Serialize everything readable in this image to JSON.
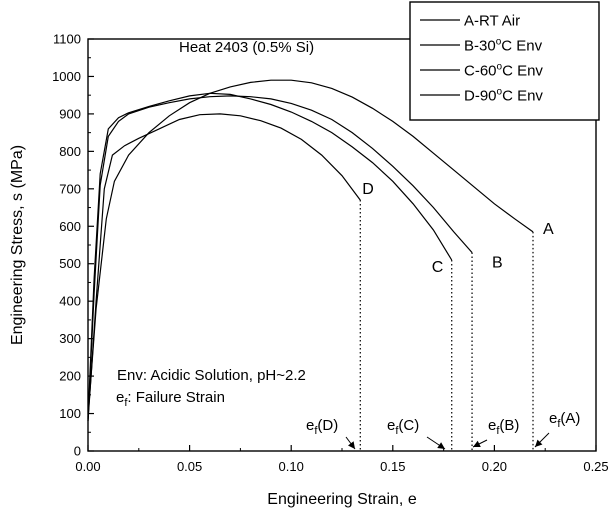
{
  "chart_data": {
    "type": "line",
    "xlabel": "Engineering Strain, e",
    "ylabel": "Engineering Stress, s (MPa)",
    "xlim": [
      0,
      0.25
    ],
    "ylim": [
      0,
      1100
    ],
    "x_ticks": [
      "0.00",
      "0.05",
      "0.10",
      "0.15",
      "0.20",
      "0.25"
    ],
    "y_ticks": [
      "0",
      "100",
      "200",
      "300",
      "400",
      "500",
      "600",
      "700",
      "800",
      "900",
      "1000",
      "1100"
    ],
    "legend_position": "top-right",
    "annotations": {
      "heat": "Heat 2403 (0.5% Si)",
      "env": "Env: Acidic Solution, pH~2.2",
      "failure_symbol": "e",
      "failure_sub": "f",
      "failure_text": ": Failure Strain"
    },
    "series": [
      {
        "name": "A-RT Air",
        "legend": {
          "main": "A-RT Air",
          "sup": "",
          "suffix": ""
        },
        "end_label": "A",
        "failure_label": "(A)",
        "failure_strain": 0.219,
        "points": [
          [
            0,
            90
          ],
          [
            0.004,
            380
          ],
          [
            0.009,
            620
          ],
          [
            0.013,
            720
          ],
          [
            0.02,
            790
          ],
          [
            0.03,
            850
          ],
          [
            0.04,
            895
          ],
          [
            0.05,
            930
          ],
          [
            0.06,
            955
          ],
          [
            0.07,
            972
          ],
          [
            0.08,
            984
          ],
          [
            0.09,
            990
          ],
          [
            0.1,
            990
          ],
          [
            0.11,
            983
          ],
          [
            0.12,
            968
          ],
          [
            0.13,
            945
          ],
          [
            0.14,
            915
          ],
          [
            0.15,
            880
          ],
          [
            0.16,
            840
          ],
          [
            0.17,
            795
          ],
          [
            0.18,
            750
          ],
          [
            0.19,
            705
          ],
          [
            0.2,
            660
          ],
          [
            0.21,
            620
          ],
          [
            0.219,
            585
          ]
        ]
      },
      {
        "name": "B-30°C Env",
        "legend": {
          "main": "B-30",
          "sup": "o",
          "suffix": "C Env"
        },
        "end_label": "B",
        "failure_label": "(B)",
        "failure_strain": 0.189,
        "points": [
          [
            0,
            80
          ],
          [
            0.003,
            420
          ],
          [
            0.006,
            710
          ],
          [
            0.01,
            840
          ],
          [
            0.015,
            880
          ],
          [
            0.02,
            900
          ],
          [
            0.03,
            918
          ],
          [
            0.04,
            930
          ],
          [
            0.05,
            940
          ],
          [
            0.06,
            946
          ],
          [
            0.07,
            948
          ],
          [
            0.08,
            946
          ],
          [
            0.09,
            940
          ],
          [
            0.1,
            928
          ],
          [
            0.11,
            910
          ],
          [
            0.12,
            885
          ],
          [
            0.13,
            850
          ],
          [
            0.14,
            808
          ],
          [
            0.15,
            760
          ],
          [
            0.16,
            708
          ],
          [
            0.17,
            650
          ],
          [
            0.18,
            585
          ],
          [
            0.189,
            530
          ]
        ]
      },
      {
        "name": "C-60°C Env",
        "legend": {
          "main": "C-60",
          "sup": "o",
          "suffix": "C Env"
        },
        "end_label": "C",
        "failure_label": "(C)",
        "failure_strain": 0.179,
        "points": [
          [
            0,
            85
          ],
          [
            0.003,
            460
          ],
          [
            0.006,
            740
          ],
          [
            0.01,
            860
          ],
          [
            0.015,
            890
          ],
          [
            0.02,
            903
          ],
          [
            0.03,
            920
          ],
          [
            0.04,
            935
          ],
          [
            0.05,
            948
          ],
          [
            0.06,
            955
          ],
          [
            0.07,
            952
          ],
          [
            0.08,
            940
          ],
          [
            0.09,
            925
          ],
          [
            0.1,
            905
          ],
          [
            0.11,
            880
          ],
          [
            0.12,
            850
          ],
          [
            0.13,
            812
          ],
          [
            0.14,
            770
          ],
          [
            0.15,
            720
          ],
          [
            0.16,
            660
          ],
          [
            0.17,
            590
          ],
          [
            0.179,
            510
          ]
        ]
      },
      {
        "name": "D-90°C Env",
        "legend": {
          "main": "D-90",
          "sup": "o",
          "suffix": "C Env"
        },
        "end_label": "D",
        "failure_label": "(D)",
        "failure_strain": 0.134,
        "points": [
          [
            0,
            80
          ],
          [
            0.004,
            400
          ],
          [
            0.008,
            700
          ],
          [
            0.012,
            790
          ],
          [
            0.018,
            815
          ],
          [
            0.025,
            835
          ],
          [
            0.035,
            860
          ],
          [
            0.045,
            885
          ],
          [
            0.055,
            898
          ],
          [
            0.065,
            900
          ],
          [
            0.075,
            895
          ],
          [
            0.085,
            882
          ],
          [
            0.095,
            862
          ],
          [
            0.105,
            832
          ],
          [
            0.115,
            790
          ],
          [
            0.125,
            735
          ],
          [
            0.134,
            670
          ]
        ]
      }
    ]
  }
}
